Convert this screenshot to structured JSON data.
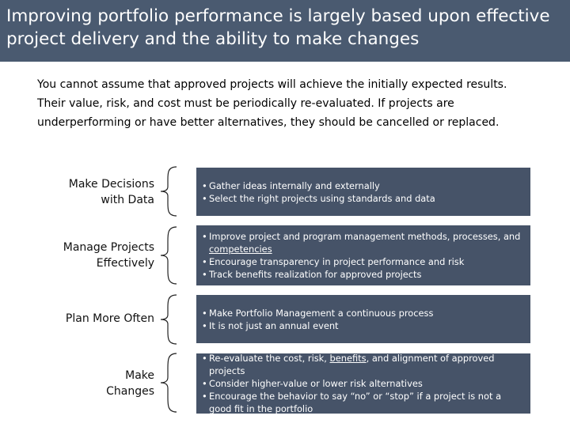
{
  "header": {
    "title": "Improving portfolio performance is largely based upon effective project delivery and the ability to make changes"
  },
  "intro": {
    "lines": [
      "You cannot assume that approved projects will achieve the initially expected results.",
      "Their value, risk, and cost must be periodically re-evaluated. If projects are",
      "underperforming or have better alternatives, they should be cancelled or replaced."
    ]
  },
  "rows": [
    {
      "label_lines": [
        "Make Decisions",
        "with Data"
      ],
      "bullets": [
        {
          "text": "Gather ideas internally and externally"
        },
        {
          "text": "Select the right projects using standards and data"
        }
      ]
    },
    {
      "label_lines": [
        "Manage Projects",
        "Effectively"
      ],
      "bullets": [
        {
          "pre": "Improve project and program management methods, processes, and ",
          "underlined": "competencies",
          "post": ""
        },
        {
          "text": "Encourage transparency in project performance and risk"
        },
        {
          "text": "Track benefits realization for approved projects"
        }
      ]
    },
    {
      "label_lines": [
        "Plan More Often"
      ],
      "bullets": [
        {
          "text": "Make Portfolio Management a continuous process"
        },
        {
          "text": "It is not just an annual event"
        }
      ]
    },
    {
      "label_lines": [
        "Make",
        "Changes"
      ],
      "bullets": [
        {
          "pre": "Re-evaluate the cost, risk, ",
          "underlined": "benefits",
          "post": ", and alignment of approved projects"
        },
        {
          "text": "Consider higher-value or lower risk alternatives"
        },
        {
          "text": "Encourage the behavior to say “no” or “stop” if a project is not a good fit in the portfolio"
        }
      ]
    }
  ]
}
